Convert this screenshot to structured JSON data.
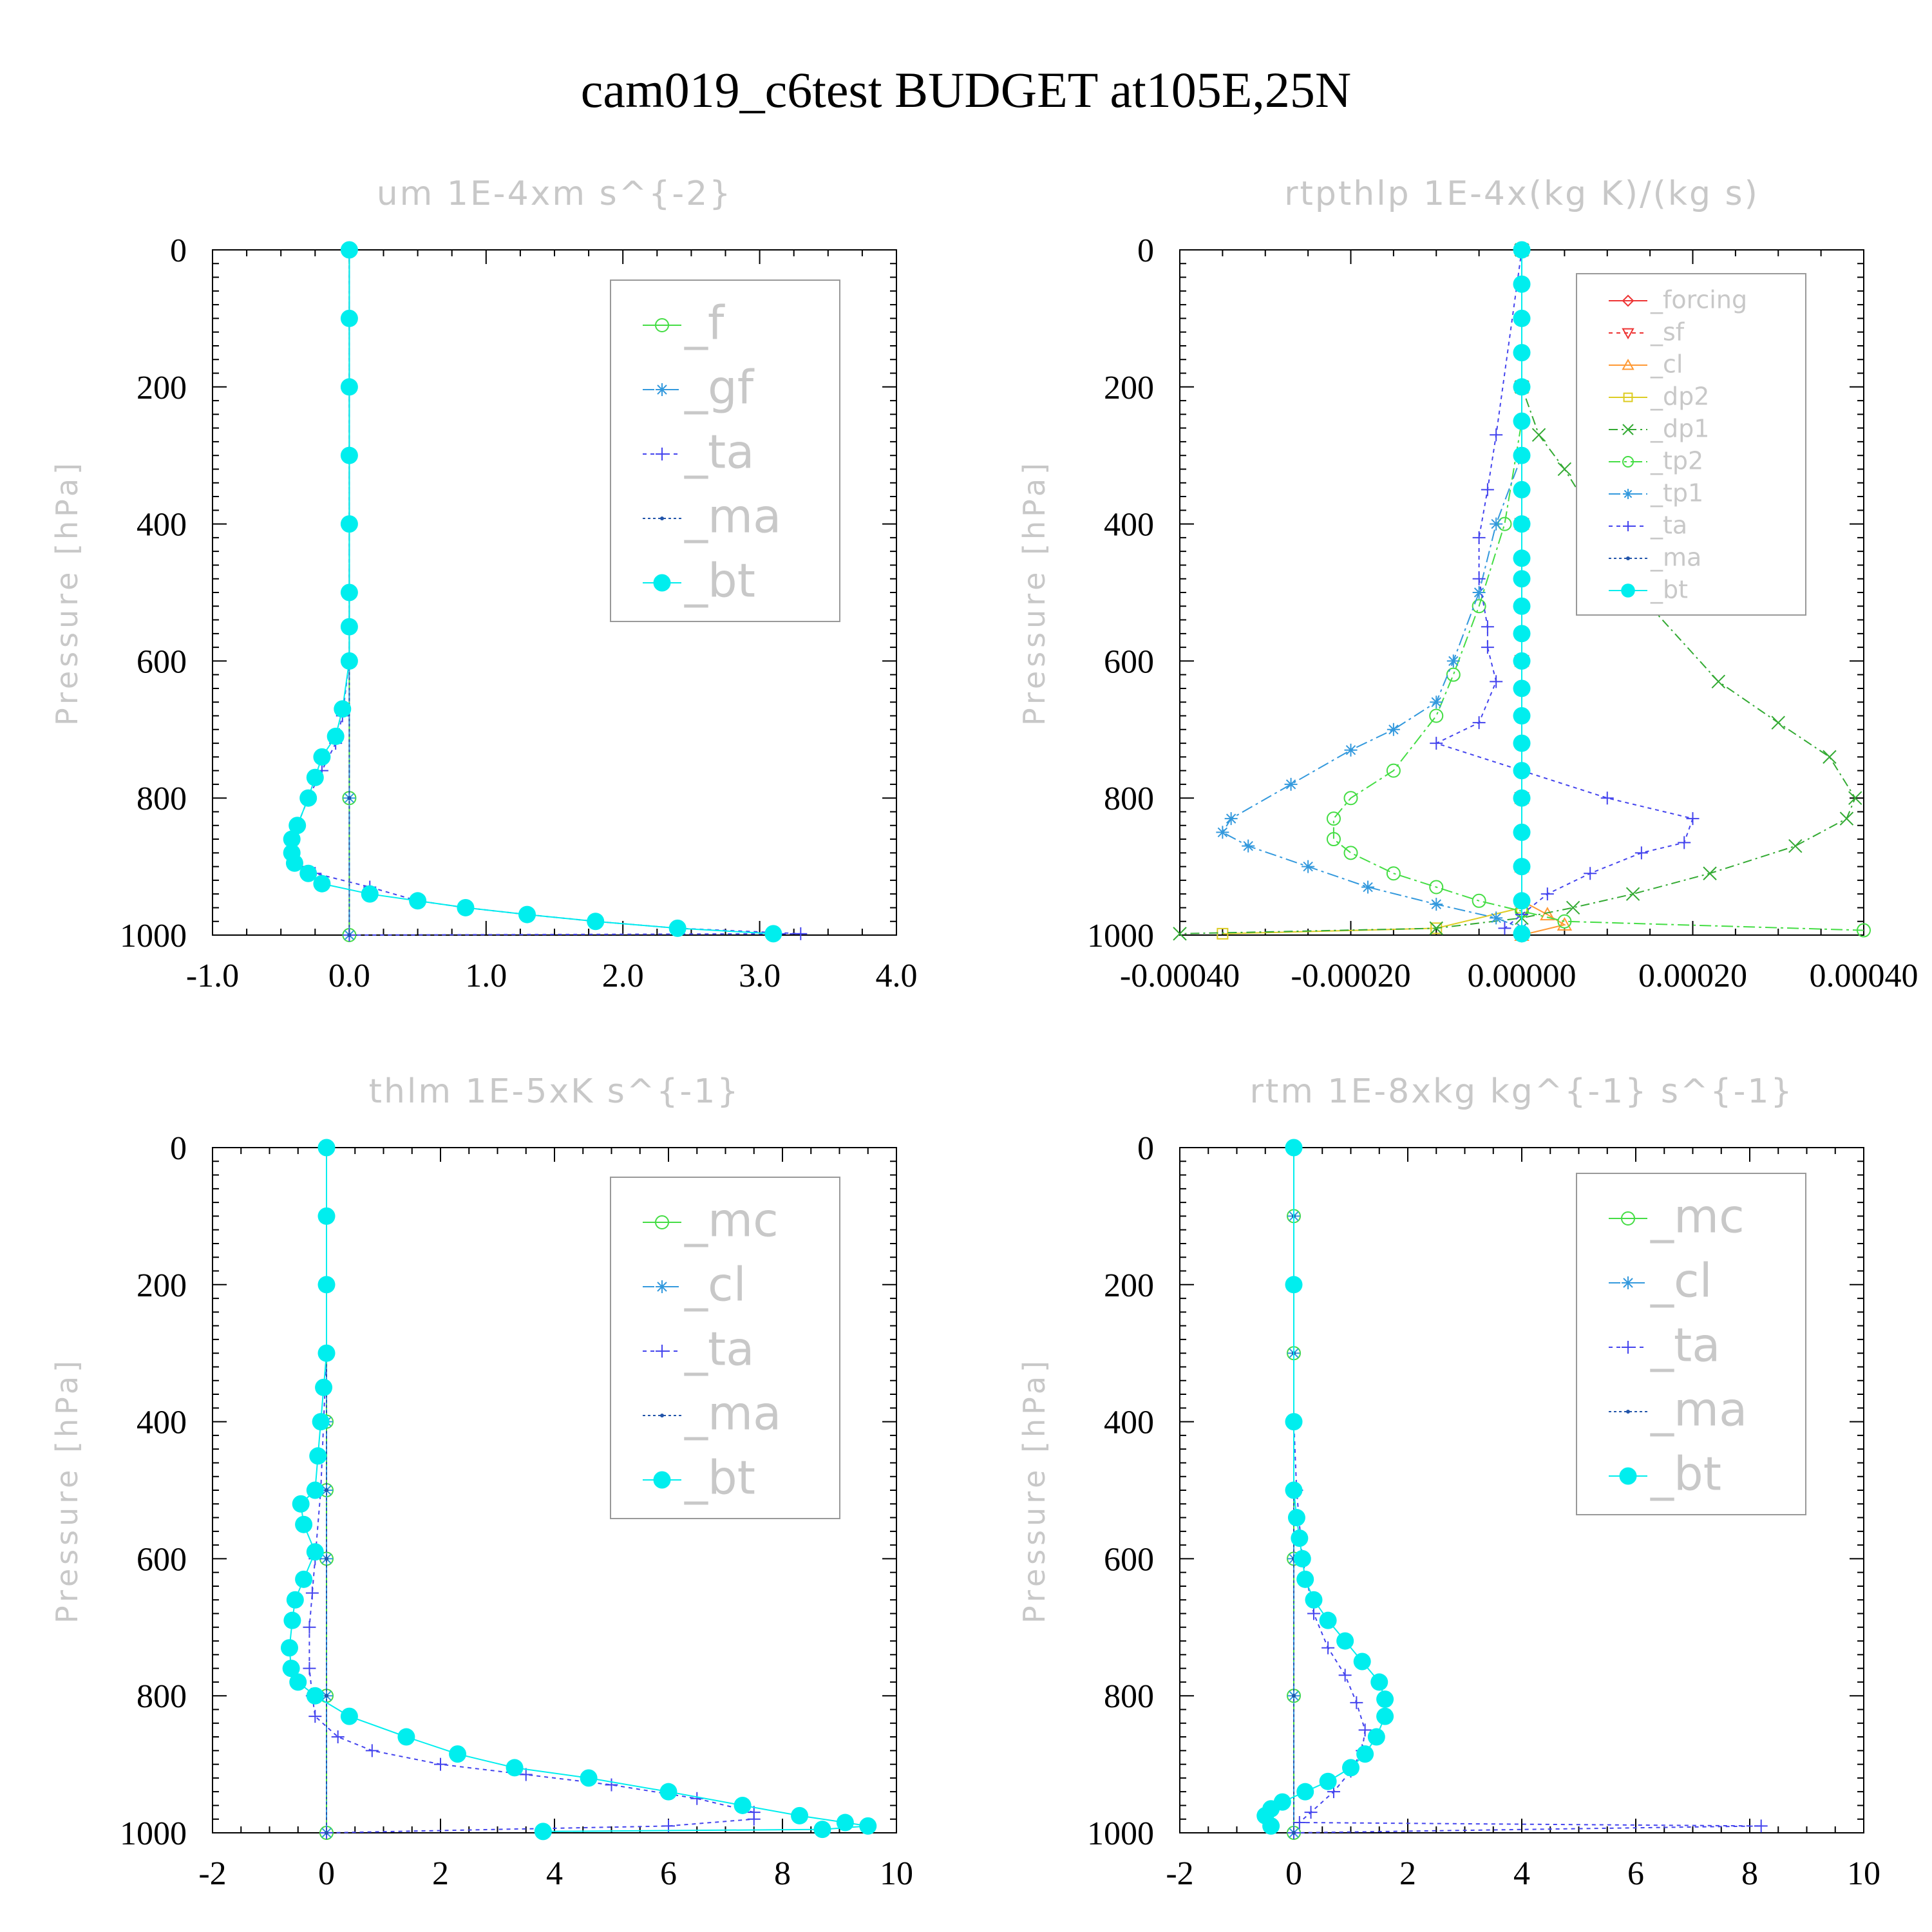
{
  "title": "cam019_c6test  BUDGET at105E,25N",
  "chart_data": [
    {
      "type": "line",
      "title": "um   1E-4xm s^{-2}",
      "ylabel": "Pressure [hPa]",
      "xlim": [
        -1.0,
        4.0
      ],
      "ylim": [
        1000,
        0
      ],
      "xticks": [
        "-1.0",
        "0.0",
        "1.0",
        "2.0",
        "3.0",
        "4.0"
      ],
      "xtick_values": [
        -1,
        0,
        1,
        2,
        3,
        4
      ],
      "yticks": [
        "0",
        "200",
        "400",
        "600",
        "800",
        "1000"
      ],
      "ytick_values": [
        0,
        200,
        400,
        600,
        800,
        1000
      ],
      "legend": "top-right",
      "series": [
        {
          "name": "_f",
          "color": "#44dd44",
          "marker": "circle",
          "dash": "",
          "x": [
            0,
            0,
            0,
            0,
            0,
            0,
            0,
            0,
            0
          ],
          "y": [
            0,
            100,
            200,
            300,
            400,
            500,
            600,
            800,
            1000
          ]
        },
        {
          "name": "_gf",
          "color": "#3399dd",
          "marker": "star",
          "dash": "18,8,4,8",
          "x": [
            0,
            0,
            0,
            0,
            0,
            0,
            0,
            0,
            0
          ],
          "y": [
            0,
            100,
            200,
            300,
            400,
            500,
            600,
            800,
            1000
          ]
        },
        {
          "name": "_ta",
          "color": "#4444ee",
          "marker": "plus",
          "dash": "6,6",
          "x": [
            0,
            0,
            0,
            0,
            0,
            -0.05,
            -0.1,
            -0.2,
            -0.3,
            -0.38,
            -0.42,
            -0.42,
            -0.35,
            -0.25,
            0.15,
            0.5,
            0.85,
            1.3,
            1.8,
            2.4,
            3.3,
            0.0
          ],
          "y": [
            0,
            100,
            300,
            500,
            600,
            680,
            720,
            760,
            800,
            840,
            860,
            880,
            900,
            910,
            930,
            950,
            960,
            970,
            980,
            990,
            998,
            1000
          ]
        },
        {
          "name": "_ma",
          "color": "#2255aa",
          "marker": "dot",
          "dash": "4,4",
          "x": [
            0,
            0,
            0,
            0,
            0,
            0,
            0,
            0,
            0
          ],
          "y": [
            0,
            100,
            200,
            300,
            400,
            500,
            600,
            800,
            1000
          ]
        },
        {
          "name": "_bt",
          "color": "#00eeee",
          "marker": "disc",
          "dash": "",
          "x": [
            0,
            0,
            0,
            0,
            0,
            0,
            0,
            0,
            -0.05,
            -0.1,
            -0.2,
            -0.25,
            -0.3,
            -0.38,
            -0.42,
            -0.42,
            -0.4,
            -0.3,
            -0.2,
            0.15,
            0.5,
            0.85,
            1.3,
            1.8,
            2.4,
            3.1
          ],
          "y": [
            0,
            100,
            200,
            300,
            400,
            500,
            550,
            600,
            670,
            710,
            740,
            770,
            800,
            840,
            860,
            880,
            895,
            910,
            925,
            940,
            950,
            960,
            970,
            980,
            990,
            998
          ]
        }
      ]
    },
    {
      "type": "line",
      "title": "rtpthlp   1E-4x(kg K)/(kg s)",
      "ylabel": "Pressure [hPa]",
      "xlim": [
        -0.0004,
        0.0004
      ],
      "ylim": [
        1000,
        0
      ],
      "xticks": [
        "-0.00040",
        "-0.00020",
        "0.00000",
        "0.00020",
        "0.00040"
      ],
      "xtick_values": [
        -0.0004,
        -0.0002,
        0,
        0.0002,
        0.0004
      ],
      "yticks": [
        "0",
        "200",
        "400",
        "600",
        "800",
        "1000"
      ],
      "ytick_values": [
        0,
        200,
        400,
        600,
        800,
        1000
      ],
      "legend": "top-right",
      "series": [
        {
          "name": "_forcing",
          "color": "#ee3333",
          "marker": "diamond",
          "dash": "",
          "x": [
            0,
            0,
            0,
            0,
            0,
            0
          ],
          "y": [
            0,
            200,
            400,
            600,
            800,
            1000
          ]
        },
        {
          "name": "_sf",
          "color": "#ee3333",
          "marker": "tri-down",
          "dash": "6,6",
          "x": [
            0,
            0,
            0,
            0,
            0,
            0
          ],
          "y": [
            0,
            200,
            400,
            600,
            800,
            1000
          ]
        },
        {
          "name": "_cl",
          "color": "#ff9933",
          "marker": "tri-up",
          "dash": "",
          "x": [
            0,
            0,
            0,
            0,
            0,
            0,
            0,
            3e-05,
            5e-05,
            0
          ],
          "y": [
            0,
            200,
            400,
            600,
            800,
            900,
            950,
            970,
            985,
            1000
          ]
        },
        {
          "name": "_dp2",
          "color": "#ddcc22",
          "marker": "square",
          "dash": "",
          "x": [
            0,
            0,
            0,
            0,
            0,
            0,
            0,
            -0.0001,
            -0.00035
          ],
          "y": [
            0,
            200,
            400,
            600,
            800,
            900,
            960,
            990,
            998
          ]
        },
        {
          "name": "_dp1",
          "color": "#33aa33",
          "marker": "x",
          "dash": "14,6,3,6",
          "x": [
            0,
            0,
            2e-05,
            5e-05,
            0.0001,
            0.00015,
            0.00023,
            0.0003,
            0.00036,
            0.00039,
            0.00038,
            0.00032,
            0.00022,
            0.00013,
            6e-05,
            0,
            -0.0001,
            -0.0004
          ],
          "y": [
            0,
            200,
            270,
            320,
            420,
            520,
            630,
            690,
            740,
            800,
            830,
            870,
            910,
            940,
            960,
            975,
            990,
            998
          ]
        },
        {
          "name": "_tp2",
          "color": "#44dd44",
          "marker": "circle",
          "dash": "18,6,4,6",
          "x": [
            0,
            0,
            -2e-05,
            -5e-05,
            -8e-05,
            -0.0001,
            -0.00015,
            -0.0002,
            -0.00022,
            -0.00022,
            -0.0002,
            -0.00015,
            -0.0001,
            -5e-05,
            0,
            5e-05,
            0.0004
          ],
          "y": [
            0,
            250,
            400,
            520,
            620,
            680,
            760,
            800,
            830,
            860,
            880,
            910,
            930,
            950,
            965,
            980,
            993
          ]
        },
        {
          "name": "_tp1",
          "color": "#3399dd",
          "marker": "star",
          "dash": "18,6,4,6",
          "x": [
            0,
            0,
            -3e-05,
            -5e-05,
            -8e-05,
            -0.0001,
            -0.00015,
            -0.0002,
            -0.00027,
            -0.00034,
            -0.00035,
            -0.00032,
            -0.00025,
            -0.00018,
            -0.0001,
            -3e-05,
            0
          ],
          "y": [
            0,
            300,
            400,
            500,
            600,
            660,
            700,
            730,
            780,
            830,
            850,
            870,
            900,
            930,
            955,
            975,
            990
          ]
        },
        {
          "name": "_ta",
          "color": "#4444ee",
          "marker": "plus",
          "dash": "6,6",
          "x": [
            0,
            -3e-05,
            -4e-05,
            -5e-05,
            -5e-05,
            -4e-05,
            -4e-05,
            -3e-05,
            -5e-05,
            -0.0001,
            0,
            0.0001,
            0.0002,
            0.00019,
            0.00014,
            8e-05,
            3e-05,
            0,
            -2e-05
          ],
          "y": [
            0,
            270,
            350,
            420,
            480,
            550,
            580,
            630,
            690,
            720,
            760,
            800,
            830,
            865,
            880,
            910,
            940,
            970,
            990
          ]
        },
        {
          "name": "_ma",
          "color": "#2255aa",
          "marker": "dot",
          "dash": "4,4",
          "x": [
            0,
            0,
            0,
            0,
            0,
            0
          ],
          "y": [
            0,
            200,
            400,
            600,
            800,
            1000
          ]
        },
        {
          "name": "_bt",
          "color": "#00eeee",
          "marker": "disc",
          "dash": "",
          "x": [
            0,
            0,
            0,
            0,
            0,
            0,
            0,
            0,
            0,
            0,
            0,
            0,
            0,
            0,
            0,
            0,
            0,
            0,
            0,
            0,
            0,
            0,
            0
          ],
          "y": [
            0,
            50,
            100,
            150,
            200,
            250,
            300,
            350,
            400,
            450,
            480,
            520,
            560,
            600,
            640,
            680,
            720,
            760,
            800,
            850,
            900,
            950,
            998
          ]
        }
      ]
    },
    {
      "type": "line",
      "title": "thlm   1E-5xK s^{-1}",
      "ylabel": "Pressure [hPa]",
      "xlim": [
        -2,
        10
      ],
      "ylim": [
        1000,
        0
      ],
      "xticks": [
        "-2",
        "0",
        "2",
        "4",
        "6",
        "8",
        "10"
      ],
      "xtick_values": [
        -2,
        0,
        2,
        4,
        6,
        8,
        10
      ],
      "yticks": [
        "0",
        "200",
        "400",
        "600",
        "800",
        "1000"
      ],
      "ytick_values": [
        0,
        200,
        400,
        600,
        800,
        1000
      ],
      "legend": "top-right",
      "series": [
        {
          "name": "_mc",
          "color": "#44dd44",
          "marker": "circle",
          "dash": "",
          "x": [
            0,
            0,
            0,
            0,
            0,
            0,
            0,
            0,
            0
          ],
          "y": [
            0,
            100,
            200,
            300,
            400,
            500,
            600,
            800,
            1000
          ]
        },
        {
          "name": "_cl",
          "color": "#3399dd",
          "marker": "star",
          "dash": "18,8,4,8",
          "x": [
            0,
            0,
            0,
            0,
            0,
            0,
            0,
            0,
            0
          ],
          "y": [
            0,
            100,
            200,
            300,
            400,
            500,
            600,
            800,
            1000
          ]
        },
        {
          "name": "_ta",
          "color": "#4444ee",
          "marker": "plus",
          "dash": "6,6",
          "x": [
            0,
            0,
            -0.1,
            -0.2,
            -0.25,
            -0.3,
            -0.3,
            -0.25,
            -0.2,
            0.2,
            0.8,
            2.0,
            3.5,
            5.0,
            6.5,
            7.5,
            7.5,
            6.0,
            0
          ],
          "y": [
            0,
            300,
            500,
            600,
            650,
            700,
            760,
            800,
            830,
            860,
            880,
            900,
            915,
            930,
            950,
            970,
            980,
            990,
            1000
          ]
        },
        {
          "name": "_ma",
          "color": "#2255aa",
          "marker": "dot",
          "dash": "4,4",
          "x": [
            0,
            0,
            0,
            0,
            0,
            0,
            0,
            0,
            0
          ],
          "y": [
            0,
            100,
            200,
            300,
            400,
            500,
            600,
            800,
            1000
          ]
        },
        {
          "name": "_bt",
          "color": "#00eeee",
          "marker": "disc",
          "dash": "",
          "x": [
            0,
            0,
            0,
            0,
            -0.05,
            -0.1,
            -0.15,
            -0.2,
            -0.45,
            -0.4,
            -0.2,
            -0.4,
            -0.55,
            -0.6,
            -0.65,
            -0.62,
            -0.5,
            -0.2,
            0.4,
            1.4,
            2.3,
            3.3,
            4.6,
            6.0,
            7.3,
            8.3,
            9.1,
            9.5,
            8.7,
            3.8
          ],
          "y": [
            0,
            100,
            200,
            300,
            350,
            400,
            450,
            500,
            520,
            550,
            590,
            630,
            660,
            690,
            730,
            760,
            780,
            800,
            830,
            860,
            885,
            905,
            920,
            940,
            960,
            975,
            985,
            990,
            995,
            998
          ]
        }
      ]
    },
    {
      "type": "line",
      "title": "rtm   1E-8xkg kg^{-1} s^{-1}",
      "ylabel": "Pressure [hPa]",
      "xlim": [
        -2,
        10
      ],
      "ylim": [
        1000,
        0
      ],
      "xticks": [
        "-2",
        "0",
        "2",
        "4",
        "6",
        "8",
        "10"
      ],
      "xtick_values": [
        -2,
        0,
        2,
        4,
        6,
        8,
        10
      ],
      "yticks": [
        "0",
        "200",
        "400",
        "600",
        "800",
        "1000"
      ],
      "ytick_values": [
        0,
        200,
        400,
        600,
        800,
        1000
      ],
      "legend": "top-right",
      "series": [
        {
          "name": "_mc",
          "color": "#44dd44",
          "marker": "circle",
          "dash": "",
          "x": [
            0,
            0,
            0,
            0,
            0,
            0,
            0,
            0,
            0
          ],
          "y": [
            0,
            100,
            200,
            300,
            400,
            500,
            600,
            800,
            1000
          ]
        },
        {
          "name": "_cl",
          "color": "#3399dd",
          "marker": "star",
          "dash": "18,8,4,8",
          "x": [
            0,
            0,
            0,
            0,
            0,
            0,
            0,
            0,
            0
          ],
          "y": [
            0,
            100,
            200,
            300,
            400,
            500,
            600,
            800,
            1000
          ]
        },
        {
          "name": "_ta",
          "color": "#4444ee",
          "marker": "plus",
          "dash": "6,6",
          "x": [
            0,
            0,
            0.05,
            0.15,
            0.35,
            0.6,
            0.9,
            1.1,
            1.25,
            1.2,
            1.0,
            0.7,
            0.3,
            0.1,
            8.2,
            0
          ],
          "y": [
            0,
            400,
            500,
            600,
            680,
            730,
            770,
            810,
            850,
            880,
            910,
            940,
            970,
            985,
            990,
            1000
          ]
        },
        {
          "name": "_ma",
          "color": "#2255aa",
          "marker": "dot",
          "dash": "4,4",
          "x": [
            0,
            0,
            0,
            0,
            0,
            0,
            0,
            0,
            0
          ],
          "y": [
            0,
            100,
            200,
            300,
            400,
            500,
            600,
            800,
            1000
          ]
        },
        {
          "name": "_bt",
          "color": "#00eeee",
          "marker": "disc",
          "dash": "",
          "x": [
            0,
            0,
            0,
            0,
            0.05,
            0.1,
            0.15,
            0.2,
            0.35,
            0.6,
            0.9,
            1.2,
            1.5,
            1.6,
            1.6,
            1.45,
            1.25,
            1.0,
            0.6,
            0.2,
            -0.2,
            -0.4,
            -0.5,
            -0.4
          ],
          "y": [
            0,
            200,
            400,
            500,
            540,
            570,
            600,
            630,
            660,
            690,
            720,
            750,
            780,
            805,
            830,
            860,
            885,
            905,
            925,
            940,
            955,
            965,
            975,
            990
          ]
        }
      ]
    }
  ]
}
